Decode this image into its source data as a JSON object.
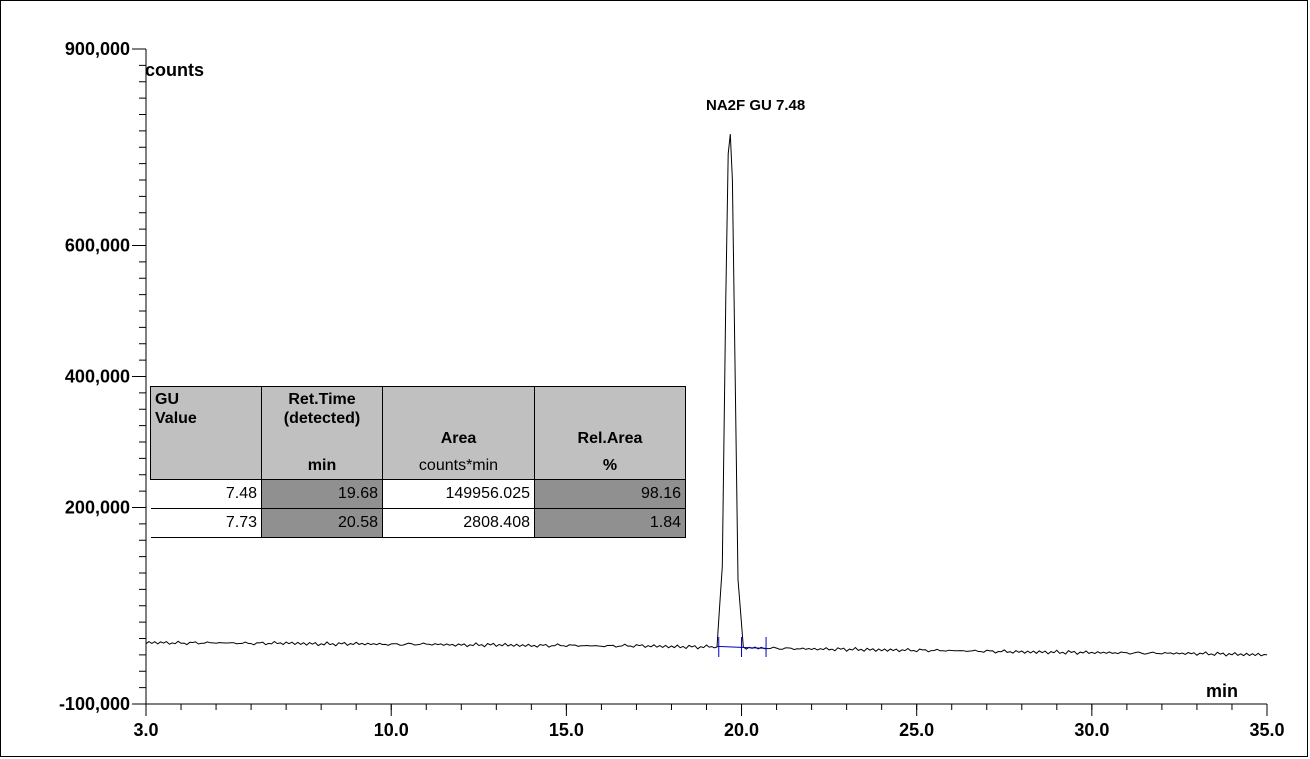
{
  "chart_data": {
    "type": "line",
    "title": "",
    "xlabel": "min",
    "ylabel": "counts",
    "xlim": [
      3.0,
      35.0
    ],
    "ylim": [
      -100000,
      900000
    ],
    "x_tick_labels": [
      "3.0",
      "10.0",
      "15.0",
      "20.0",
      "25.0",
      "30.0",
      "35.0"
    ],
    "x_ticks": [
      3.0,
      10.0,
      15.0,
      20.0,
      25.0,
      30.0,
      35.0
    ],
    "y_tick_labels": [
      "900,000",
      "600,000",
      "400,000",
      "200,000",
      "-100,000"
    ],
    "y_ticks": [
      900000,
      600000,
      400000,
      200000,
      -100000
    ],
    "grid": false,
    "series": [
      {
        "x": [
          3.0,
          4.0,
          5.0,
          6.0,
          7.0,
          8.0,
          9.0,
          10.0,
          11.0,
          12.0,
          13.0,
          14.0,
          15.0,
          16.0,
          17.0,
          18.0,
          19.0,
          19.3,
          19.45,
          19.55,
          19.62,
          19.68,
          19.74,
          19.81,
          19.9,
          20.05,
          20.3,
          21.0,
          22.0,
          23.0,
          24.0,
          25.0,
          26.0,
          27.0,
          28.0,
          29.0,
          30.0,
          31.0,
          32.0,
          33.0,
          34.0,
          35.0
        ],
        "y": [
          -6000,
          -7000,
          -6500,
          -7500,
          -7000,
          -8500,
          -8000,
          -9000,
          -8500,
          -10000,
          -9500,
          -11000,
          -10500,
          -11500,
          -11000,
          -12500,
          -13000,
          -13000,
          110000,
          520000,
          740000,
          770000,
          700000,
          430000,
          90000,
          -13500,
          -14500,
          -15000,
          -16000,
          -16500,
          -17500,
          -18000,
          -18500,
          -19500,
          -20500,
          -21000,
          -21500,
          -22000,
          -22500,
          -23000,
          -24000,
          -25000
        ]
      }
    ],
    "baseline": {
      "x": [
        19.3,
        20.7
      ],
      "y": [
        -12000,
        -15000
      ]
    },
    "integration_marks": [
      19.35,
      20.0,
      20.7
    ],
    "annotations": [
      {
        "text": "NA2F GU 7.48",
        "x": 20.5,
        "y": 800000
      }
    ]
  },
  "table": {
    "headers": [
      [
        "GU",
        "Value"
      ],
      [
        "Ret.Time",
        "(detected)"
      ],
      [
        "Area"
      ],
      [
        "Rel.Area"
      ]
    ],
    "units": [
      "",
      "min",
      "counts*min",
      "%"
    ],
    "rows": [
      [
        "7.48",
        "19.68",
        "149956.025",
        "98.16"
      ],
      [
        "7.73",
        "20.58",
        "2808.408",
        "1.84"
      ]
    ]
  }
}
